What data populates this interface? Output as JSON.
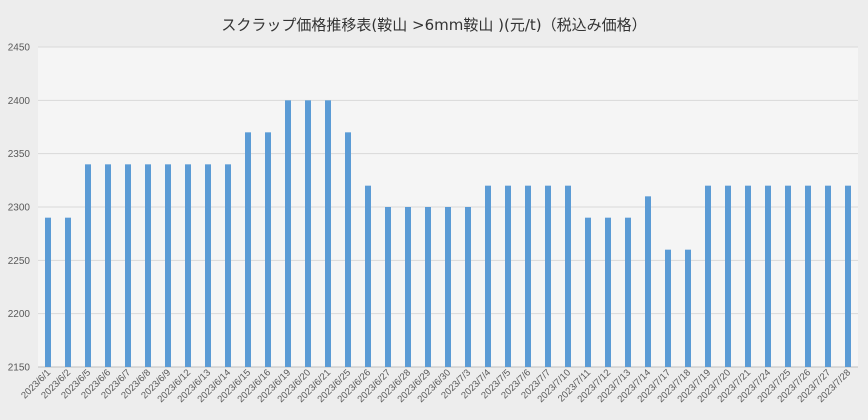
{
  "chart_data": {
    "type": "bar",
    "title": "スクラップ価格推移表(鞍山 >6mm鞍山 )(元/t)（税込み価格）",
    "xlabel": "",
    "ylabel": "",
    "ylim": [
      2150,
      2450
    ],
    "yticks": [
      2150,
      2200,
      2250,
      2300,
      2350,
      2400,
      2450
    ],
    "grid": true,
    "legend": "none",
    "bar_color": "#5b9bd5",
    "categories": [
      "2023/6/1",
      "2023/6/2",
      "2023/6/5",
      "2023/6/6",
      "2023/6/7",
      "2023/6/8",
      "2023/6/9",
      "2023/6/12",
      "2023/6/13",
      "2023/6/14",
      "2023/6/15",
      "2023/6/16",
      "2023/6/19",
      "2023/6/20",
      "2023/6/21",
      "2023/6/25",
      "2023/6/26",
      "2023/6/27",
      "2023/6/28",
      "2023/6/29",
      "2023/6/30",
      "2023/7/3",
      "2023/7/4",
      "2023/7/5",
      "2023/7/6",
      "2023/7/7",
      "2023/7/10",
      "2023/7/11",
      "2023/7/12",
      "2023/7/13",
      "2023/7/14",
      "2023/7/17",
      "2023/7/18",
      "2023/7/19",
      "2023/7/20",
      "2023/7/21",
      "2023/7/24",
      "2023/7/25",
      "2023/7/26",
      "2023/7/27",
      "2023/7/28"
    ],
    "values": [
      2290,
      2290,
      2340,
      2340,
      2340,
      2340,
      2340,
      2340,
      2340,
      2340,
      2370,
      2370,
      2400,
      2400,
      2400,
      2370,
      2320,
      2300,
      2300,
      2300,
      2300,
      2300,
      2320,
      2320,
      2320,
      2320,
      2320,
      2290,
      2290,
      2290,
      2310,
      2260,
      2260,
      2320,
      2320,
      2320,
      2320,
      2320,
      2320,
      2320,
      2320
    ]
  }
}
